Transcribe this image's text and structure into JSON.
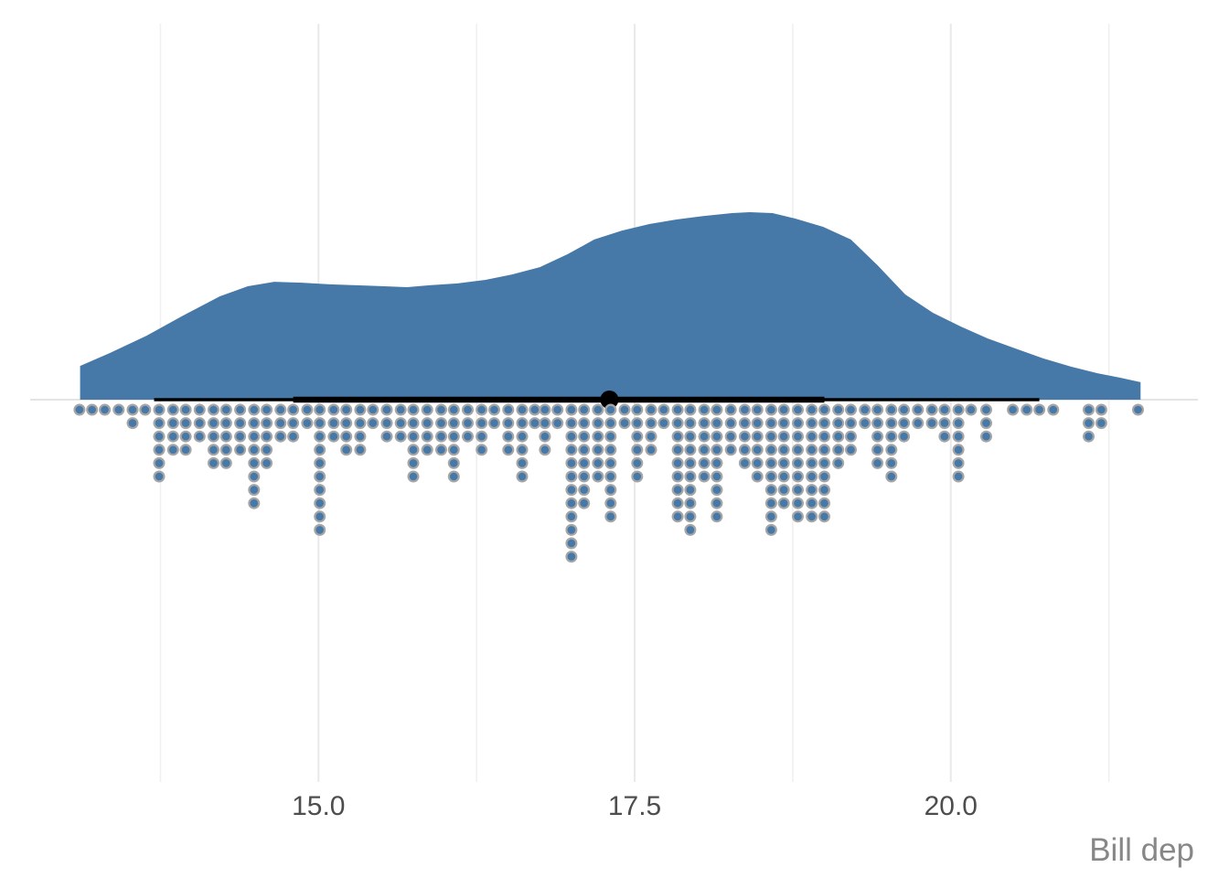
{
  "chart_data": {
    "type": "area",
    "variant": "raincloud / half-eye: density area above baseline, median + interval bar, hanging dotplot below",
    "title": "",
    "xlabel": "Bill dep",
    "ylabel": "",
    "x_axis": {
      "range": [
        12.72,
        21.95
      ],
      "ticks": [
        {
          "value": 15.0,
          "label": "15.0"
        },
        {
          "value": 17.5,
          "label": "17.5"
        },
        {
          "value": 20.0,
          "label": "20.0"
        }
      ],
      "minor_gridlines": [
        13.75,
        16.25,
        18.75,
        21.25
      ]
    },
    "y_axis": {
      "ticks": [],
      "label": ""
    },
    "grid": "vertical major+minor gridlines, light gray on white; single horizontal baseline gridline",
    "legend": "none",
    "point_interval": {
      "median": 17.3,
      "interval_narrow": [
        14.8,
        19.0
      ],
      "interval_wide": [
        13.7,
        20.7
      ]
    },
    "density_curve": {
      "comment": "pairs of [bill-depth value, relative density height 0..1]",
      "points": [
        [
          13.115,
          0.0
        ],
        [
          13.115,
          0.18
        ],
        [
          13.35,
          0.249
        ],
        [
          13.64,
          0.341
        ],
        [
          13.93,
          0.449
        ],
        [
          14.22,
          0.551
        ],
        [
          14.44,
          0.605
        ],
        [
          14.65,
          0.629
        ],
        [
          14.87,
          0.624
        ],
        [
          15.09,
          0.615
        ],
        [
          15.3,
          0.61
        ],
        [
          15.52,
          0.605
        ],
        [
          15.7,
          0.6
        ],
        [
          15.88,
          0.61
        ],
        [
          16.1,
          0.62
        ],
        [
          16.32,
          0.639
        ],
        [
          16.53,
          0.668
        ],
        [
          16.75,
          0.707
        ],
        [
          16.97,
          0.776
        ],
        [
          17.18,
          0.854
        ],
        [
          17.4,
          0.902
        ],
        [
          17.62,
          0.937
        ],
        [
          17.83,
          0.961
        ],
        [
          18.05,
          0.98
        ],
        [
          18.27,
          0.995
        ],
        [
          18.41,
          1.0
        ],
        [
          18.59,
          0.995
        ],
        [
          18.77,
          0.966
        ],
        [
          18.99,
          0.922
        ],
        [
          19.21,
          0.854
        ],
        [
          19.42,
          0.717
        ],
        [
          19.64,
          0.561
        ],
        [
          19.86,
          0.463
        ],
        [
          20.08,
          0.39
        ],
        [
          20.29,
          0.327
        ],
        [
          20.51,
          0.273
        ],
        [
          20.73,
          0.22
        ],
        [
          20.95,
          0.176
        ],
        [
          21.16,
          0.141
        ],
        [
          21.34,
          0.117
        ],
        [
          21.5,
          0.093
        ],
        [
          21.5,
          0.0
        ]
      ]
    },
    "dot_columns": {
      "comment": "hanging dot stacks below baseline: [bill-depth bin value, dot count]",
      "binwidth": 0.106,
      "columns": [
        [
          13.11,
          1
        ],
        [
          13.21,
          1
        ],
        [
          13.31,
          1
        ],
        [
          13.42,
          1
        ],
        [
          13.53,
          2
        ],
        [
          13.63,
          1
        ],
        [
          13.74,
          6
        ],
        [
          13.85,
          4
        ],
        [
          13.95,
          4
        ],
        [
          14.06,
          3
        ],
        [
          14.17,
          5
        ],
        [
          14.27,
          5
        ],
        [
          14.38,
          4
        ],
        [
          14.49,
          8
        ],
        [
          14.59,
          5
        ],
        [
          14.7,
          3
        ],
        [
          14.8,
          3
        ],
        [
          14.91,
          2
        ],
        [
          15.01,
          10
        ],
        [
          15.12,
          3
        ],
        [
          15.22,
          4
        ],
        [
          15.33,
          4
        ],
        [
          15.43,
          2
        ],
        [
          15.54,
          3
        ],
        [
          15.65,
          3
        ],
        [
          15.75,
          6
        ],
        [
          15.86,
          4
        ],
        [
          15.97,
          4
        ],
        [
          16.07,
          6
        ],
        [
          16.18,
          3
        ],
        [
          16.29,
          4
        ],
        [
          16.39,
          2
        ],
        [
          16.5,
          4
        ],
        [
          16.61,
          6
        ],
        [
          16.71,
          2
        ],
        [
          16.79,
          4
        ],
        [
          16.89,
          2
        ],
        [
          17.0,
          12
        ],
        [
          17.1,
          8
        ],
        [
          17.21,
          6
        ],
        [
          17.31,
          9
        ],
        [
          17.42,
          2
        ],
        [
          17.52,
          6
        ],
        [
          17.63,
          4
        ],
        [
          17.73,
          2
        ],
        [
          17.84,
          9
        ],
        [
          17.94,
          10
        ],
        [
          18.05,
          6
        ],
        [
          18.15,
          9
        ],
        [
          18.26,
          4
        ],
        [
          18.37,
          5
        ],
        [
          18.47,
          6
        ],
        [
          18.58,
          10
        ],
        [
          18.68,
          8
        ],
        [
          18.79,
          9
        ],
        [
          18.9,
          9
        ],
        [
          19.0,
          9
        ],
        [
          19.11,
          5
        ],
        [
          19.21,
          4
        ],
        [
          19.32,
          2
        ],
        [
          19.42,
          5
        ],
        [
          19.53,
          6
        ],
        [
          19.63,
          3
        ],
        [
          19.74,
          2
        ],
        [
          19.85,
          2
        ],
        [
          19.95,
          3
        ],
        [
          20.06,
          6
        ],
        [
          20.16,
          1
        ],
        [
          20.28,
          3
        ],
        [
          20.49,
          1
        ],
        [
          20.6,
          1
        ],
        [
          20.7,
          1
        ],
        [
          20.81,
          1
        ],
        [
          21.09,
          3
        ],
        [
          21.19,
          2
        ],
        [
          21.48,
          1
        ]
      ]
    },
    "colors": {
      "density_fill": "#4678A8",
      "dot_fill": "#4678A8",
      "dot_stroke": "#A5A5A5",
      "interval_color": "#000000",
      "median_point_color": "#000000",
      "gridline_major": "#E9E9E9",
      "gridline_minor": "#F0F0F0",
      "baseline": "#E4E4E4",
      "tick_text": "#4D4D4D",
      "axis_title_text": "#878787",
      "background": "#FFFFFF"
    }
  }
}
